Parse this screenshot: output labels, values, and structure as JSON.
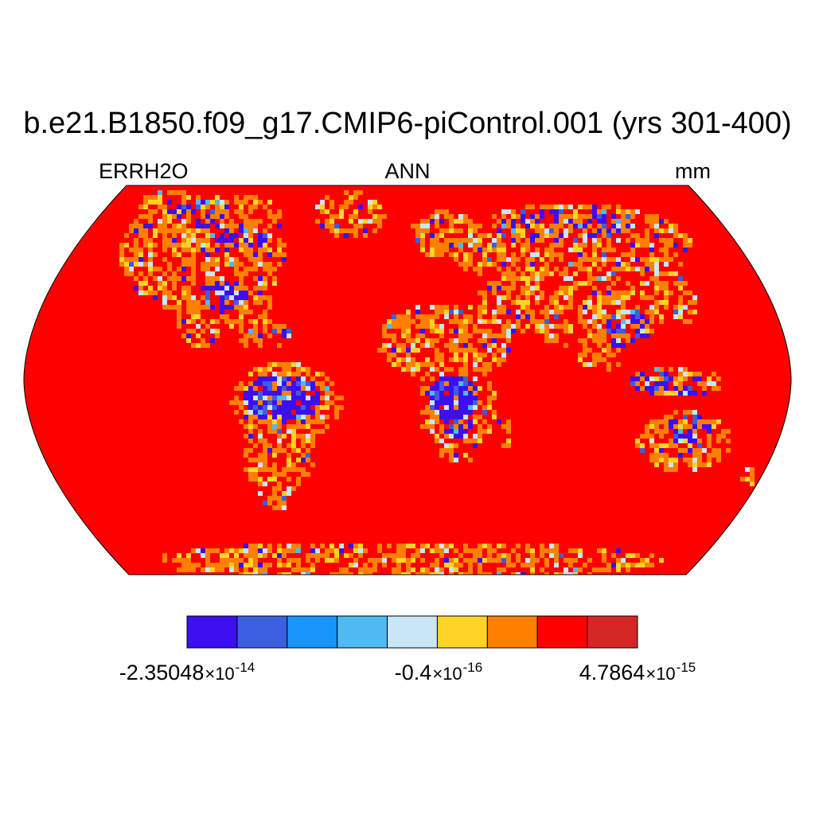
{
  "title": "b.e21.B1850.f09_g17.CMIP6-piControl.001 (yrs 301-400)",
  "subtitle": {
    "left": "ERRH2O",
    "center": "ANN",
    "right": "mm"
  },
  "map": {
    "projection": "robinson",
    "ocean_color": "#ff0000",
    "land_palette": [
      "#ff0000",
      "#ff8000",
      "#ffd426",
      "#3d0ff0",
      "#3c5fe0",
      "#c8e6f6",
      "#4ebaf2",
      "#1795fb"
    ]
  },
  "colorbar": {
    "colors": [
      "#3d0ff0",
      "#3c5fe0",
      "#1795fb",
      "#4ebaf2",
      "#c8e6f6",
      "#ffd426",
      "#ff8000",
      "#ff0000",
      "#d62727"
    ],
    "labels": [
      {
        "mantissa": "-2.35048",
        "times": "×10",
        "exponent": "-14"
      },
      {
        "mantissa": "-0.4",
        "times": "×10",
        "exponent": "-16"
      },
      {
        "mantissa": "4.7864",
        "times": "×10",
        "exponent": "-15"
      }
    ]
  }
}
